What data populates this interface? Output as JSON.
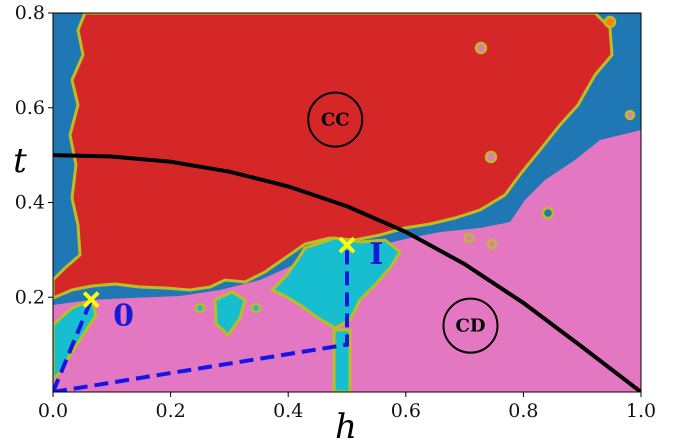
{
  "chart_data": {
    "type": "heatmap",
    "xlabel": "h",
    "ylabel": "t",
    "xlim": [
      0.0,
      1.0
    ],
    "ylim": [
      0.0,
      0.8
    ],
    "xticks": [
      "0.0",
      "0.2",
      "0.4",
      "0.6",
      "0.8",
      "1.0"
    ],
    "yticks": [
      "0.2",
      "0.4",
      "0.6",
      "0.8"
    ],
    "colors": {
      "red": "#d62728",
      "pink": "#e377c2",
      "blue": "#1f77b4",
      "cyan": "#17becf",
      "olive": "#bcbd22",
      "orange": "#ff7f0e",
      "boundary": "#000000",
      "path": "#1515e6",
      "marker": "#ffff00"
    },
    "regions": [
      {
        "label": "CC",
        "x": 0.48,
        "y": 0.575
      },
      {
        "label": "CD",
        "x": 0.71,
        "y": 0.14
      }
    ],
    "boundary_curve": {
      "x": [
        0.0,
        0.1,
        0.2,
        0.3,
        0.4,
        0.5,
        0.6,
        0.7,
        0.8,
        0.9,
        0.96,
        1.0
      ],
      "y": [
        0.5,
        0.497,
        0.486,
        0.465,
        0.434,
        0.392,
        0.338,
        0.27,
        0.188,
        0.095,
        0.038,
        0.0
      ]
    },
    "paths": [
      {
        "label": "0",
        "x": [
          0.0,
          0.065
        ],
        "y": [
          0.0,
          0.195
        ],
        "label_x": 0.12,
        "label_y": 0.14
      },
      {
        "label": "I",
        "x": [
          0.0,
          0.5,
          0.5
        ],
        "y": [
          0.0,
          0.1,
          0.31
        ],
        "label_x": 0.55,
        "label_y": 0.27
      }
    ],
    "markers": [
      {
        "x": 0.065,
        "y": 0.195
      },
      {
        "x": 0.5,
        "y": 0.31
      }
    ]
  }
}
